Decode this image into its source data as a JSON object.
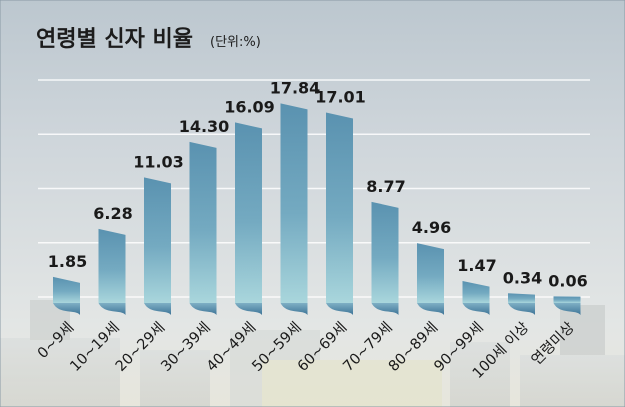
{
  "title": "연령별 신자 비율",
  "unit_label": "(단위:%)",
  "chart_data": {
    "type": "bar",
    "title": "연령별 신자 비율",
    "unit": "%",
    "categories": [
      "0~9세",
      "10~19세",
      "20~29세",
      "30~39세",
      "40~49세",
      "50~59세",
      "60~69세",
      "70~79세",
      "80~89세",
      "90~99세",
      "100세 이상",
      "연령미상"
    ],
    "values": [
      1.85,
      6.28,
      11.03,
      14.3,
      16.09,
      17.84,
      17.01,
      8.77,
      4.96,
      1.47,
      0.34,
      0.06
    ],
    "value_labels": [
      "1.85",
      "6.28",
      "11.03",
      "14.30",
      "16.09",
      "17.84",
      "17.01",
      "8.77",
      "4.96",
      "1.47",
      "0.34",
      "0.06"
    ],
    "ylim": [
      0,
      20
    ],
    "grid": true,
    "bar_color": "#5f98b4"
  }
}
